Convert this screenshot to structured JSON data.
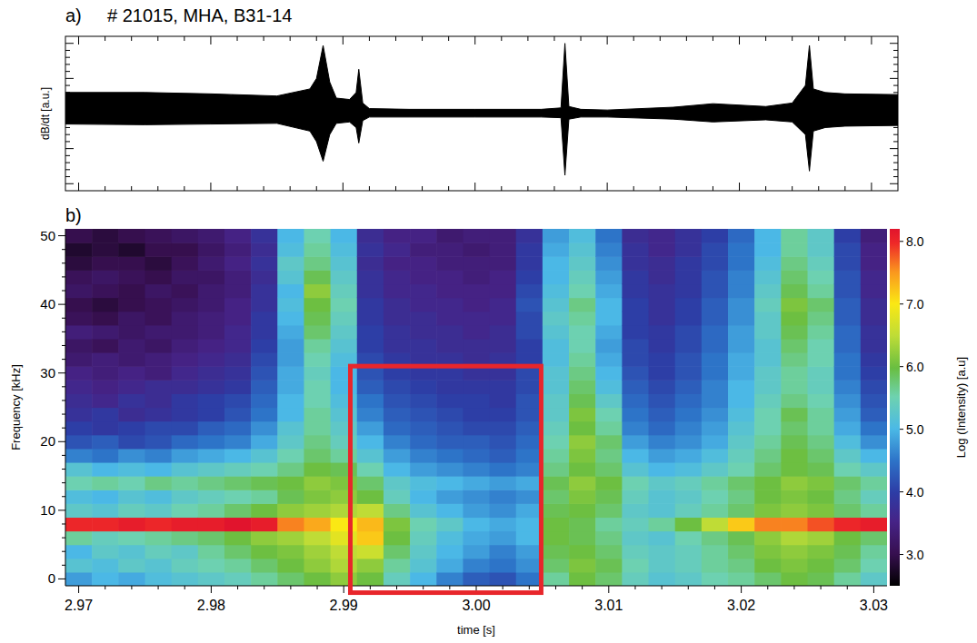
{
  "chart_data": [
    {
      "type": "area",
      "panel": "a)",
      "title": "# 21015, MHA, B31-14",
      "y_label": "dB/dt [a.u.]",
      "color": "#000000",
      "x": [
        2.969,
        2.975,
        2.98,
        2.985,
        2.9875,
        2.988,
        2.9885,
        2.989,
        2.9895,
        2.9905,
        2.991,
        2.9912,
        2.9915,
        2.992,
        2.995,
        3.0,
        3.005,
        3.0065,
        3.0068,
        3.0071,
        3.008,
        3.01,
        3.015,
        3.018,
        3.022,
        3.024,
        3.025,
        3.0253,
        3.0256,
        3.0265,
        3.028,
        3.032
      ],
      "series": [
        {
          "values": [
            0.3,
            0.3,
            0.28,
            0.25,
            0.35,
            0.5,
            0.97,
            0.45,
            0.22,
            0.2,
            0.3,
            0.63,
            0.15,
            0.07,
            0.06,
            0.06,
            0.06,
            0.08,
            1.0,
            0.1,
            0.06,
            0.05,
            0.09,
            0.14,
            0.1,
            0.15,
            0.4,
            0.97,
            0.35,
            0.3,
            0.28,
            0.27
          ]
        },
        {
          "values": [
            -0.15,
            -0.16,
            -0.15,
            -0.14,
            -0.25,
            -0.4,
            -0.68,
            -0.3,
            -0.14,
            -0.12,
            -0.2,
            -0.42,
            -0.1,
            -0.05,
            -0.05,
            -0.05,
            -0.05,
            -0.06,
            -0.88,
            -0.08,
            -0.05,
            -0.05,
            -0.08,
            -0.12,
            -0.09,
            -0.12,
            -0.3,
            -0.82,
            -0.25,
            -0.2,
            -0.18,
            -0.17
          ]
        }
      ],
      "xlim": [
        2.969,
        3.032
      ],
      "xticks": [
        2.97,
        2.98,
        2.99,
        3,
        3.01,
        3.02,
        3.03
      ],
      "ylim": [
        -1.1,
        1.1
      ],
      "yticks": [
        -1,
        -0.5,
        0,
        0.5,
        1
      ],
      "tick_labels": false
    },
    {
      "type": "heatmap",
      "panel": "b)",
      "x_label": "time [s]",
      "y_label": "Frequency [kHz]",
      "x": [
        2.97,
        2.972,
        2.974,
        2.976,
        2.978,
        2.98,
        2.982,
        2.984,
        2.986,
        2.988,
        2.99,
        2.992,
        2.994,
        2.996,
        2.998,
        3.0,
        3.002,
        3.004,
        3.006,
        3.008,
        3.01,
        3.012,
        3.014,
        3.016,
        3.018,
        3.02,
        3.022,
        3.024,
        3.026,
        3.028,
        3.03
      ],
      "y": [
        0,
        2,
        4,
        6,
        8,
        10,
        12,
        14,
        16,
        18,
        20,
        22,
        24,
        26,
        28,
        30,
        32,
        34,
        36,
        38,
        40,
        42,
        44,
        46,
        48,
        50
      ],
      "z": [
        [
          4.8,
          5.2,
          5.0,
          5.6,
          8.0,
          5.3,
          5.1,
          5.5,
          5.2,
          4.6,
          4.2,
          4.0,
          3.8,
          3.7,
          3.6,
          3.5,
          3.3,
          3.2,
          3.4,
          3.1,
          3.0,
          3.2,
          3.1,
          2.9,
          2.8,
          3.0
        ],
        [
          5.0,
          5.1,
          5.3,
          5.4,
          8.0,
          5.2,
          5.0,
          5.6,
          5.0,
          4.5,
          4.3,
          3.9,
          3.9,
          3.6,
          3.5,
          3.4,
          3.4,
          3.1,
          3.3,
          3.0,
          2.9,
          3.1,
          3.2,
          3.0,
          2.9,
          2.9
        ],
        [
          4.9,
          5.3,
          5.2,
          5.5,
          8.1,
          5.4,
          5.2,
          5.5,
          5.1,
          4.7,
          4.1,
          4.0,
          3.7,
          3.8,
          3.6,
          3.5,
          3.3,
          3.3,
          3.2,
          3.2,
          3.0,
          3.0,
          3.1,
          3.0,
          2.8,
          3.0
        ],
        [
          5.1,
          5.2,
          5.4,
          5.6,
          8.0,
          5.3,
          5.1,
          5.7,
          5.0,
          4.6,
          4.2,
          4.1,
          3.8,
          3.7,
          3.7,
          3.4,
          3.4,
          3.2,
          3.3,
          3.1,
          3.1,
          3.2,
          3.0,
          2.9,
          3.0,
          3.1
        ],
        [
          5.2,
          5.4,
          5.3,
          5.7,
          8.1,
          5.5,
          5.3,
          5.6,
          5.2,
          4.8,
          4.4,
          4.1,
          3.9,
          3.9,
          3.7,
          3.6,
          3.5,
          3.4,
          3.3,
          3.3,
          3.2,
          3.1,
          3.2,
          3.1,
          3.0,
          3.2
        ],
        [
          5.3,
          5.5,
          5.6,
          5.8,
          8.1,
          5.6,
          5.4,
          5.7,
          5.3,
          4.9,
          4.5,
          4.3,
          4.0,
          4.0,
          3.8,
          3.7,
          3.6,
          3.5,
          3.4,
          3.4,
          3.3,
          3.3,
          3.2,
          3.3,
          3.2,
          3.3
        ],
        [
          5.4,
          5.6,
          5.8,
          6.0,
          8.2,
          5.8,
          5.5,
          5.8,
          5.4,
          5.0,
          4.6,
          4.4,
          4.2,
          4.1,
          3.9,
          3.8,
          3.7,
          3.6,
          3.6,
          3.5,
          3.5,
          3.4,
          3.4,
          3.5,
          3.4,
          3.5
        ],
        [
          5.6,
          5.8,
          6.0,
          6.2,
          8.1,
          6.0,
          5.6,
          5.9,
          5.5,
          5.2,
          4.9,
          4.7,
          4.5,
          4.4,
          4.3,
          4.2,
          4.1,
          4.0,
          3.9,
          3.9,
          3.8,
          3.8,
          3.7,
          3.8,
          3.7,
          3.8
        ],
        [
          5.8,
          6.0,
          6.1,
          6.3,
          7.6,
          6.2,
          5.9,
          6.0,
          5.7,
          5.5,
          5.3,
          5.2,
          5.0,
          5.0,
          4.9,
          4.9,
          4.8,
          4.8,
          4.9,
          5.0,
          5.1,
          5.0,
          5.2,
          5.3,
          5.1,
          5.0
        ],
        [
          6.0,
          6.2,
          6.3,
          6.5,
          7.4,
          6.3,
          6.1,
          6.2,
          6.0,
          5.8,
          5.7,
          5.6,
          5.6,
          5.5,
          5.5,
          5.4,
          5.5,
          5.6,
          5.8,
          5.9,
          6.0,
          6.2,
          5.9,
          5.7,
          5.6,
          5.5
        ],
        [
          6.2,
          6.4,
          6.5,
          6.8,
          7.0,
          6.4,
          6.2,
          6.1,
          5.9,
          5.6,
          5.4,
          5.3,
          5.2,
          5.1,
          5.0,
          5.0,
          5.1,
          5.2,
          5.3,
          5.4,
          5.5,
          5.4,
          5.3,
          5.2,
          5.1,
          5.0
        ],
        [
          6.0,
          6.2,
          6.6,
          7.2,
          7.3,
          6.5,
          6.0,
          5.8,
          5.5,
          5.2,
          5.0,
          4.8,
          4.6,
          4.5,
          4.3,
          4.2,
          4.1,
          4.0,
          4.0,
          3.9,
          3.9,
          3.8,
          3.8,
          3.7,
          3.8,
          3.7
        ],
        [
          5.4,
          5.6,
          5.8,
          6.0,
          6.1,
          5.7,
          5.4,
          5.3,
          5.0,
          4.8,
          4.6,
          4.4,
          4.3,
          4.2,
          4.1,
          4.0,
          3.9,
          3.8,
          3.8,
          3.7,
          3.7,
          3.6,
          3.6,
          3.5,
          3.6,
          3.5
        ],
        [
          5.0,
          5.2,
          5.3,
          5.4,
          5.5,
          5.2,
          5.0,
          5.1,
          4.8,
          4.6,
          4.4,
          4.3,
          4.2,
          4.1,
          4.0,
          3.9,
          3.8,
          3.8,
          3.7,
          3.7,
          3.6,
          3.6,
          3.5,
          3.5,
          3.4,
          3.5
        ],
        [
          4.6,
          4.9,
          5.0,
          5.1,
          5.3,
          5.0,
          4.8,
          5.0,
          4.7,
          4.5,
          4.3,
          4.2,
          4.1,
          4.0,
          3.9,
          3.9,
          3.8,
          3.7,
          3.7,
          3.6,
          3.6,
          3.5,
          3.5,
          3.4,
          3.4,
          3.3
        ],
        [
          4.3,
          4.6,
          4.8,
          4.9,
          5.0,
          4.8,
          4.7,
          4.9,
          4.6,
          4.4,
          4.3,
          4.1,
          4.0,
          4.0,
          3.9,
          3.8,
          3.7,
          3.7,
          3.6,
          3.6,
          3.5,
          3.5,
          3.4,
          3.4,
          3.3,
          3.4
        ],
        [
          4.2,
          4.5,
          4.6,
          4.8,
          4.9,
          4.7,
          4.6,
          4.8,
          4.5,
          4.3,
          4.2,
          4.1,
          4.0,
          3.9,
          3.9,
          3.8,
          3.8,
          3.7,
          3.7,
          3.6,
          3.6,
          3.5,
          3.5,
          3.4,
          3.4,
          3.4
        ],
        [
          4.5,
          4.7,
          4.8,
          5.0,
          5.0,
          4.9,
          4.7,
          4.9,
          4.6,
          4.5,
          4.4,
          4.3,
          4.2,
          4.2,
          4.1,
          4.1,
          4.0,
          4.0,
          4.1,
          4.1,
          4.2,
          4.1,
          4.0,
          3.9,
          3.9,
          3.8
        ],
        [
          5.6,
          5.8,
          5.9,
          6.0,
          6.0,
          5.9,
          5.8,
          5.9,
          5.7,
          5.6,
          5.5,
          5.4,
          5.3,
          5.3,
          5.2,
          5.2,
          5.1,
          5.1,
          5.2,
          5.3,
          5.2,
          5.1,
          5.0,
          5.0,
          4.9,
          4.8
        ],
        [
          6.0,
          6.1,
          6.0,
          5.9,
          5.9,
          6.0,
          6.1,
          6.2,
          6.0,
          6.1,
          6.2,
          6.0,
          6.1,
          5.9,
          5.8,
          5.7,
          5.6,
          5.5,
          5.5,
          5.6,
          5.7,
          5.5,
          5.4,
          5.3,
          5.2,
          5.1
        ],
        [
          5.8,
          5.9,
          5.8,
          5.7,
          5.6,
          5.8,
          5.9,
          6.0,
          5.8,
          5.7,
          5.8,
          5.6,
          5.5,
          5.3,
          5.1,
          5.0,
          4.9,
          4.8,
          4.9,
          5.0,
          5.0,
          4.9,
          4.8,
          4.7,
          4.6,
          4.5
        ],
        [
          5.4,
          5.5,
          5.4,
          5.3,
          5.4,
          5.3,
          5.4,
          5.5,
          5.2,
          5.0,
          4.8,
          4.6,
          4.5,
          4.4,
          4.3,
          4.2,
          4.1,
          4.1,
          4.0,
          4.0,
          4.0,
          3.9,
          3.9,
          3.8,
          3.8,
          3.7
        ],
        [
          5.2,
          5.3,
          5.3,
          5.2,
          5.6,
          5.2,
          5.2,
          5.3,
          5.0,
          4.8,
          4.6,
          4.4,
          4.3,
          4.2,
          4.1,
          4.0,
          4.0,
          3.9,
          3.9,
          3.8,
          3.8,
          3.8,
          3.7,
          3.7,
          3.6,
          3.6
        ],
        [
          5.3,
          5.4,
          5.4,
          5.5,
          6.0,
          5.4,
          5.3,
          5.4,
          5.1,
          4.9,
          4.7,
          4.6,
          4.5,
          4.4,
          4.3,
          4.2,
          4.2,
          4.1,
          4.1,
          4.0,
          4.0,
          3.9,
          3.9,
          3.9,
          3.8,
          3.8
        ],
        [
          5.5,
          5.6,
          5.6,
          5.7,
          6.5,
          5.6,
          5.5,
          5.6,
          5.3,
          5.1,
          4.9,
          4.8,
          4.7,
          4.6,
          4.6,
          4.5,
          4.5,
          4.4,
          4.4,
          4.3,
          4.3,
          4.2,
          4.2,
          4.1,
          4.1,
          4.0
        ],
        [
          5.6,
          5.7,
          5.8,
          5.9,
          7.2,
          5.8,
          5.7,
          5.8,
          5.5,
          5.4,
          5.3,
          5.2,
          5.1,
          5.0,
          5.0,
          4.9,
          4.9,
          4.8,
          4.8,
          4.7,
          4.7,
          4.6,
          4.6,
          4.5,
          4.5,
          4.4
        ],
        [
          5.8,
          6.0,
          6.1,
          6.2,
          7.6,
          6.1,
          6.0,
          6.0,
          5.8,
          5.7,
          5.6,
          5.5,
          5.5,
          5.4,
          5.3,
          5.3,
          5.2,
          5.2,
          5.3,
          5.3,
          5.4,
          5.3,
          5.2,
          5.1,
          5.0,
          5.0
        ],
        [
          6.0,
          6.1,
          6.2,
          6.4,
          7.6,
          6.2,
          6.1,
          6.2,
          6.0,
          6.0,
          5.9,
          5.8,
          5.9,
          5.7,
          5.6,
          5.6,
          5.7,
          5.8,
          5.9,
          6.0,
          6.1,
          5.9,
          5.8,
          5.7,
          5.6,
          5.6
        ],
        [
          5.9,
          6.0,
          6.1,
          6.3,
          7.8,
          6.1,
          6.0,
          6.1,
          5.9,
          5.8,
          5.7,
          5.6,
          5.6,
          5.5,
          5.4,
          5.4,
          5.5,
          5.5,
          5.6,
          5.7,
          5.8,
          5.6,
          5.5,
          5.4,
          5.3,
          5.3
        ],
        [
          5.6,
          5.8,
          5.9,
          6.0,
          8.0,
          5.8,
          5.7,
          5.8,
          5.5,
          5.3,
          5.1,
          4.9,
          4.8,
          4.7,
          4.6,
          4.5,
          4.5,
          4.4,
          4.4,
          4.3,
          4.3,
          4.2,
          4.2,
          4.1,
          4.1,
          4.0
        ],
        [
          5.3,
          5.5,
          5.6,
          5.8,
          8.1,
          5.6,
          5.4,
          5.6,
          5.3,
          5.0,
          4.7,
          4.5,
          4.3,
          4.2,
          4.1,
          4.0,
          3.9,
          3.8,
          3.8,
          3.7,
          3.7,
          3.6,
          3.6,
          3.5,
          3.5,
          3.4
        ]
      ],
      "xlim": [
        2.969,
        3.031
      ],
      "xticks": [
        2.97,
        2.98,
        2.99,
        {
          "value": 3,
          "label": "3.00"
        },
        3.01,
        3.02,
        3.03
      ],
      "ylim": [
        -1,
        51
      ],
      "yticks": [
        0,
        10,
        20,
        30,
        40,
        50
      ],
      "colorbar": {
        "label": "Log (Intensity) [a.u]",
        "lim": [
          2.5,
          8.2
        ],
        "ticks": [
          {
            "value": 3,
            "label": "3.0"
          },
          {
            "value": 4,
            "label": "4.0"
          },
          {
            "value": 5,
            "label": "5.0"
          },
          {
            "value": 6,
            "label": "6.0"
          },
          {
            "value": 7,
            "label": "7.0"
          },
          {
            "value": 8,
            "label": "8.0"
          }
        ]
      },
      "highlight_box": {
        "x": [
          2.9905,
          3.0049
        ],
        "y": [
          -2,
          31
        ],
        "color": "#e8262b"
      }
    }
  ]
}
